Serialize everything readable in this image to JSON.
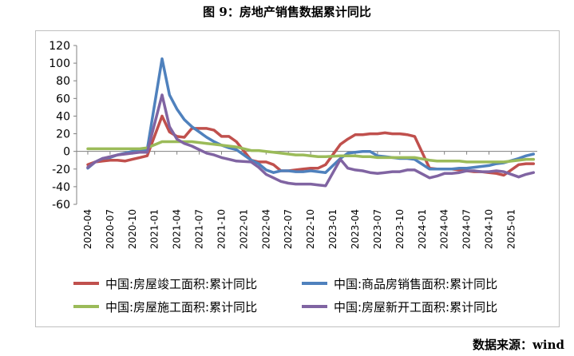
{
  "title": "图 9：房地产销售数据累计同比",
  "source": "数据来源：wind",
  "chart_data": {
    "type": "line",
    "ylim": [
      -60,
      120
    ],
    "yticks": [
      -60,
      -40,
      -20,
      0,
      20,
      40,
      60,
      80,
      100,
      120
    ],
    "x_tick_labels": [
      "2020-04",
      "2020-07",
      "2020-10",
      "2021-01",
      "2021-04",
      "2021-07",
      "2021-10",
      "2022-01",
      "2022-04",
      "2022-07",
      "2022-10",
      "2023-01",
      "2023-04",
      "2023-07",
      "2023-10",
      "2024-01",
      "2024-04",
      "2024-07",
      "2024-10",
      "2025-01"
    ],
    "x": [
      "2020-04",
      "2020-05",
      "2020-06",
      "2020-07",
      "2020-08",
      "2020-09",
      "2020-10",
      "2020-11",
      "2020-12",
      "2021-02",
      "2021-03",
      "2021-04",
      "2021-05",
      "2021-06",
      "2021-07",
      "2021-08",
      "2021-09",
      "2021-10",
      "2021-11",
      "2021-12",
      "2022-02",
      "2022-03",
      "2022-04",
      "2022-05",
      "2022-06",
      "2022-07",
      "2022-08",
      "2022-09",
      "2022-10",
      "2022-11",
      "2022-12",
      "2023-02",
      "2023-03",
      "2023-04",
      "2023-05",
      "2023-06",
      "2023-07",
      "2023-08",
      "2023-09",
      "2023-10",
      "2023-11",
      "2023-12",
      "2024-02",
      "2024-03",
      "2024-04",
      "2024-05",
      "2024-06",
      "2024-07",
      "2024-08",
      "2024-09",
      "2024-10",
      "2024-11",
      "2024-12",
      "2025-02",
      "2025-03",
      "2025-04"
    ],
    "grid": false,
    "legend_position": "bottom",
    "series": [
      {
        "name": "中国:房屋竣工面积:累计同比",
        "color": "#c0504d",
        "values": [
          -15,
          -12,
          -11,
          -10,
          -10,
          -11,
          -9,
          -7,
          -5,
          40,
          22,
          17,
          16,
          26,
          26,
          26,
          24,
          17,
          17,
          11,
          -10,
          -12,
          -12,
          -15,
          -22,
          -22,
          -21,
          -20,
          -19,
          -19,
          -15,
          8,
          14,
          19,
          19,
          20,
          20,
          21,
          20,
          20,
          19,
          17,
          -19,
          -20,
          -20,
          -20,
          -21,
          -22,
          -23,
          -23,
          -24,
          -25,
          -27,
          -15,
          -14,
          -14
        ]
      },
      {
        "name": "中国:商品房销售面积:累计同比",
        "color": "#4f81bd",
        "values": [
          -19,
          -12,
          -8,
          -7,
          -4,
          -2,
          0,
          1,
          2,
          105,
          64,
          48,
          36,
          28,
          22,
          16,
          11,
          7,
          4,
          2,
          -10,
          -14,
          -21,
          -24,
          -22,
          -22,
          -23,
          -23,
          -22,
          -23,
          -24,
          -8,
          -2,
          -1,
          0,
          0,
          -5,
          -6,
          -7,
          -8,
          -8,
          -9,
          -20,
          -20,
          -20,
          -20,
          -19,
          -19,
          -18,
          -17,
          -16,
          -14,
          -13,
          -8,
          -5,
          -3
        ]
      },
      {
        "name": "中国:房屋施工面积:累计同比",
        "color": "#9bbb59",
        "values": [
          3,
          3,
          3,
          3,
          3,
          3,
          3,
          3,
          4,
          11,
          11,
          11,
          11,
          11,
          10,
          9,
          8,
          7,
          6,
          5,
          1,
          1,
          0,
          -1,
          -2,
          -3,
          -4,
          -4,
          -5,
          -6,
          -6,
          -5,
          -5,
          -5,
          -6,
          -6,
          -7,
          -7,
          -7,
          -7,
          -7,
          -7,
          -10,
          -11,
          -11,
          -11,
          -11,
          -12,
          -12,
          -12,
          -12,
          -12,
          -12,
          -10,
          -9,
          -9
        ]
      },
      {
        "name": "中国:房屋新开工面积:累计同比",
        "color": "#8064a2",
        "values": [
          -18,
          -12,
          -8,
          -6,
          -4,
          -3,
          -2,
          -1,
          -1,
          64,
          28,
          14,
          9,
          6,
          2,
          -2,
          -4,
          -7,
          -9,
          -11,
          -12,
          -18,
          -26,
          -30,
          -34,
          -36,
          -37,
          -37,
          -37,
          -38,
          -39,
          -9,
          -19,
          -21,
          -22,
          -24,
          -25,
          -24,
          -23,
          -23,
          -21,
          -21,
          -30,
          -28,
          -25,
          -25,
          -24,
          -22,
          -22,
          -23,
          -23,
          -22,
          -23,
          -29,
          -26,
          -24
        ]
      }
    ]
  }
}
